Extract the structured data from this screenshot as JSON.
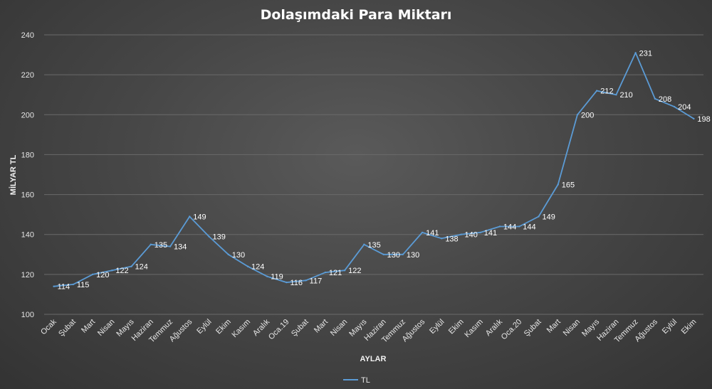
{
  "chart_data": {
    "type": "line",
    "title": "Dolaşımdaki Para Miktarı",
    "xlabel": "AYLAR",
    "ylabel": "MİLYAR TL",
    "ylim": [
      100,
      240
    ],
    "yticks": [
      100,
      120,
      140,
      160,
      180,
      200,
      220,
      240
    ],
    "grid": true,
    "legend_position": "bottom",
    "colors": {
      "line": "#5b9bd5",
      "grid": "#6a6a6a",
      "text": "#e6e6e6"
    },
    "categories": [
      "Ocak",
      "Şubat",
      "Mart",
      "Nisan",
      "Mayıs",
      "Haziran",
      "Temmuz",
      "Ağustos",
      "Eylül",
      "Ekim",
      "Kasım",
      "Aralık",
      "Oca.19",
      "Şubat",
      "Mart",
      "Nisan",
      "Mayıs",
      "Haziran",
      "Temmuz",
      "Ağustos",
      "Eylül",
      "Ekim",
      "Kasım",
      "Aralık",
      "Oca.20",
      "Şubat",
      "Mart",
      "Nisan",
      "Mayıs",
      "Haziran",
      "Temmuz",
      "Ağustos",
      "Eylül",
      "Ekim"
    ],
    "series": [
      {
        "name": "TL",
        "values": [
          114,
          115,
          120,
          122,
          124,
          135,
          134,
          149,
          139,
          130,
          124,
          119,
          116,
          117,
          121,
          122,
          135,
          130,
          130,
          141,
          138,
          140,
          141,
          144,
          144,
          149,
          165,
          200,
          212,
          210,
          231,
          208,
          204,
          198
        ]
      }
    ]
  }
}
